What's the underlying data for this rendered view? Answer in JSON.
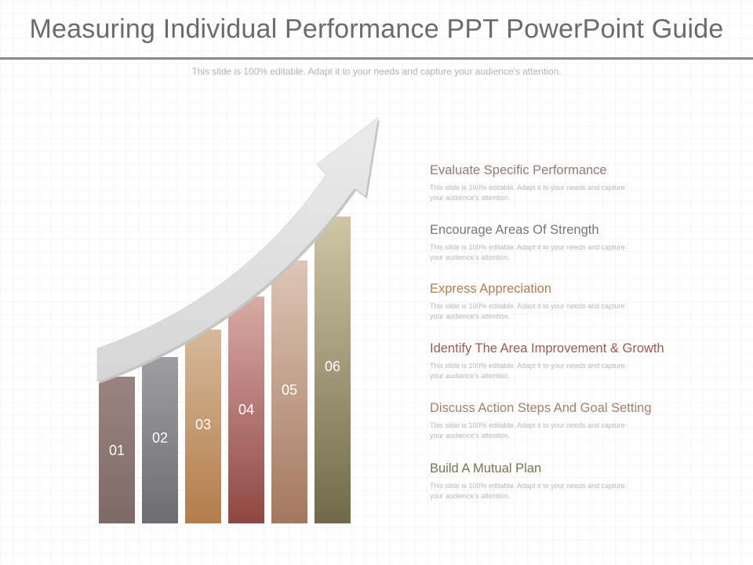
{
  "slide": {
    "title": "Measuring Individual Performance PPT PowerPoint Guide",
    "subtitle": "This slide is 100% editable. Adapt it to your needs and capture your audience's attention."
  },
  "bars": [
    {
      "number": "01",
      "color_top": "#9a8480",
      "color_bottom": "#7d6a66"
    },
    {
      "number": "02",
      "color_top": "#9e9ea0",
      "color_bottom": "#6e6e70"
    },
    {
      "number": "03",
      "color_top": "#d6b99b",
      "color_bottom": "#b37c4a"
    },
    {
      "number": "04",
      "color_top": "#d9aaa5",
      "color_bottom": "#8f4743"
    },
    {
      "number": "05",
      "color_top": "#ddc6b6",
      "color_bottom": "#a4785e"
    },
    {
      "number": "06",
      "color_top": "#cfc6a5",
      "color_bottom": "#716a48"
    }
  ],
  "items": [
    {
      "title": "Evaluate Specific Performance",
      "desc": "This slide is 100% editable. Adapt it to your needs and capture your audience's attention.",
      "color": "#8e7b77"
    },
    {
      "title": "Encourage Areas Of Strength",
      "desc": "This slide is 100% editable. Adapt it to your needs and capture your audience's attention.",
      "color": "#777777"
    },
    {
      "title": "Express Appreciation",
      "desc": "This slide is 100% editable. Adapt it to your needs and capture your audience's attention.",
      "color": "#b07f52"
    },
    {
      "title": "Identify The Area Improvement & Growth",
      "desc": "This slide is 100% editable. Adapt it to your needs and capture your audience's attention.",
      "color": "#9a5a52"
    },
    {
      "title": "Discuss Action Steps And Goal Setting",
      "desc": "This slide is 100% editable. Adapt it to your needs and capture your audience's attention.",
      "color": "#a2806a"
    },
    {
      "title": "Build A Mutual Plan",
      "desc": "This slide is 100% editable. Adapt it to your needs and capture your audience's attention.",
      "color": "#7a7250"
    }
  ],
  "colors": {
    "title": "#6b6b6b",
    "rule": "#8a8a8a",
    "arrow": "#e2e2e2",
    "arrow_shadow": "#bdbdbd"
  }
}
